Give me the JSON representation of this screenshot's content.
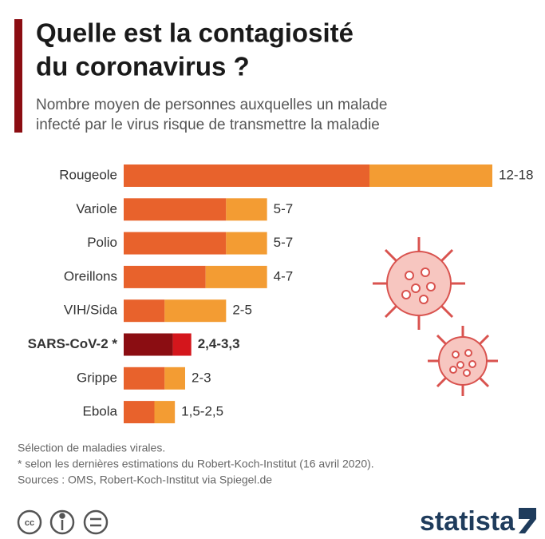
{
  "chart_data": {
    "type": "range_bar",
    "title_lines": [
      "Quelle est la contagiosité",
      "du coronavirus ?"
    ],
    "subtitle_lines": [
      "Nombre moyen de personnes auxquelles un malade",
      "infecté par le virus risque de transmettre la maladie"
    ],
    "categories": [
      "Rougeole",
      "Variole",
      "Polio",
      "Oreillons",
      "VIH/Sida",
      "SARS-CoV-2 *",
      "Grippe",
      "Ebola"
    ],
    "series": [
      {
        "color": "#e8622c",
        "values": [
          12,
          5,
          5,
          4,
          2,
          2.4,
          2,
          1.5
        ]
      },
      {
        "color": "#f39c33",
        "values": [
          18,
          7,
          7,
          7,
          5,
          3.3,
          3,
          2.5
        ]
      }
    ],
    "value_labels": [
      "12-18",
      "5-7",
      "5-7",
      "4-7",
      "2-5",
      "2,4-3,3",
      "2-3",
      "1,5-2,5"
    ],
    "highlight": {
      "index": 5,
      "colors": [
        "#8b0d12",
        "#d4161c"
      ]
    },
    "xlim": [
      0,
      18
    ],
    "notes": [
      "Sélection de maladies virales.",
      "* selon les dernières estimations du Robert-Koch-Institut (16 avril 2020).",
      "Sources : OMS, Robert-Koch-Institut via Spiegel.de"
    ],
    "brand": "statista"
  }
}
